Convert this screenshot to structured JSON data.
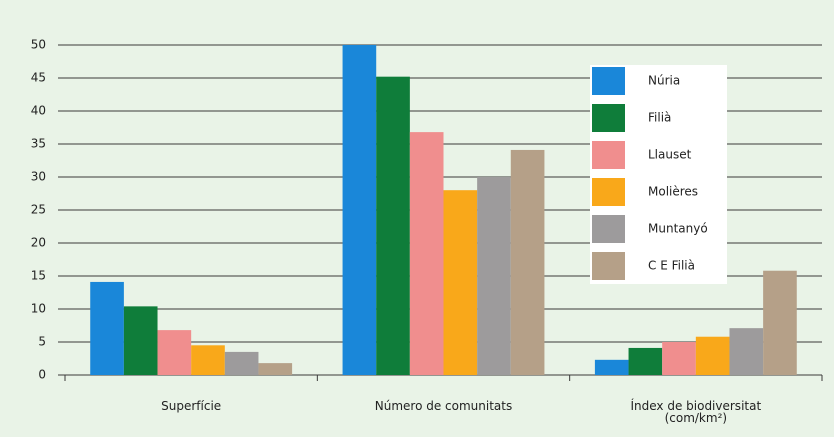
{
  "chart_data": {
    "type": "bar",
    "categories": [
      "Superfície",
      "Número de comunitats",
      "Índex de biodiversitat\n(com/km²)"
    ],
    "series": [
      {
        "name": "Núria",
        "color": "#1a87d9",
        "values": [
          14.1,
          50,
          2.3
        ]
      },
      {
        "name": "Filià",
        "color": "#0f7d3a",
        "values": [
          10.4,
          45.2,
          4.1
        ]
      },
      {
        "name": "Llauset",
        "color": "#f08e8e",
        "values": [
          6.8,
          36.8,
          5
        ]
      },
      {
        "name": "Molières",
        "color": "#f9a81a",
        "values": [
          4.5,
          28,
          5.8
        ]
      },
      {
        "name": "Muntanyó",
        "color": "#9d9b9c",
        "values": [
          3.5,
          30,
          7.1
        ]
      },
      {
        "name": "C E Filià",
        "color": "#b5a088",
        "values": [
          1.8,
          34.1,
          15.8
        ]
      }
    ],
    "ylim": [
      0,
      50
    ],
    "yticks": [
      0,
      5,
      10,
      15,
      20,
      25,
      30,
      35,
      40,
      45,
      50
    ],
    "grid": true,
    "legend": "upper right"
  }
}
